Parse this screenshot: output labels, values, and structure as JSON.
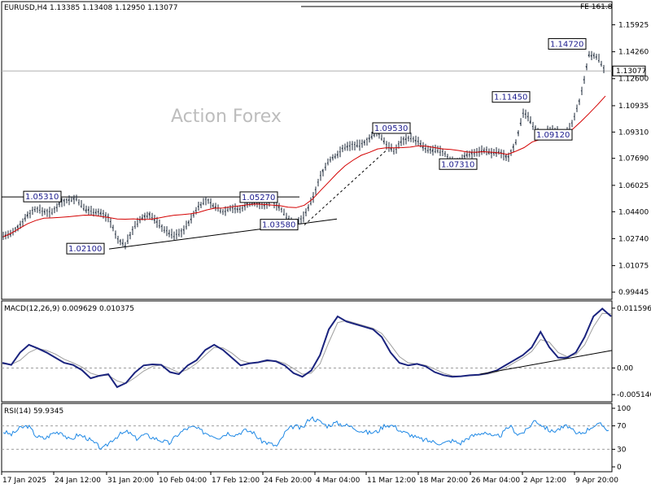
{
  "chart_data": {
    "type": "line",
    "main": {
      "symbol_info": "EURUSD,H4  1.13385 1.13408 1.12950 1.13077",
      "fe_label": "FE 161.8",
      "watermark": "Action Forex",
      "y_ticks": [
        "1.15925",
        "1.14260",
        "1.12600",
        "1.10935",
        "1.09310",
        "1.07690",
        "1.06025",
        "1.04400",
        "1.02740",
        "1.01075",
        "0.99445"
      ],
      "ylim": [
        0.99,
        1.1735
      ],
      "current_price": "1.13077",
      "price_series_x_index": [
        0,
        10,
        20,
        30,
        40,
        50,
        60,
        70,
        80,
        90,
        100,
        110,
        120,
        130,
        140,
        150,
        160,
        170,
        180,
        190,
        200,
        210,
        220,
        230,
        240,
        250,
        260,
        270,
        280,
        290,
        300,
        310,
        320,
        330,
        340,
        350,
        360,
        370,
        380,
        390,
        400,
        410,
        420,
        430,
        440,
        450,
        460,
        470,
        480,
        490,
        500,
        510,
        520,
        530,
        540,
        550,
        560,
        570,
        580,
        590,
        600,
        610,
        620,
        630,
        640,
        650,
        660,
        670,
        680,
        690,
        700,
        710,
        720,
        730,
        740
      ],
      "price_series": [
        1.0292,
        1.0301,
        1.0354,
        1.042,
        1.046,
        1.044,
        1.0435,
        1.0498,
        1.0512,
        1.052,
        1.0455,
        1.0445,
        1.0432,
        1.0401,
        1.027,
        1.0234,
        1.034,
        1.0401,
        1.0423,
        1.037,
        1.032,
        1.0292,
        1.0318,
        1.0386,
        1.0475,
        1.0512,
        1.047,
        1.044,
        1.0466,
        1.045,
        1.0488,
        1.05,
        1.0474,
        1.051,
        1.0462,
        1.04,
        1.0363,
        1.0412,
        1.0515,
        1.066,
        1.0755,
        1.079,
        1.084,
        1.085,
        1.085,
        1.0892,
        1.0929,
        1.0862,
        1.081,
        1.088,
        1.0898,
        1.087,
        1.082,
        1.082,
        1.081,
        1.0755,
        1.0745,
        1.0792,
        1.0805,
        1.082,
        1.0801,
        1.0808,
        1.077,
        1.087,
        1.106,
        1.098,
        1.0915,
        1.094,
        1.094,
        1.09,
        1.099,
        1.1152,
        1.1406,
        1.1397,
        1.1308
      ],
      "ma_series": [
        1.0285,
        1.0308,
        1.0338,
        1.0366,
        1.0386,
        1.04,
        1.0402,
        1.0405,
        1.0409,
        1.0414,
        1.0419,
        1.0418,
        1.0411,
        1.0404,
        1.0395,
        1.0394,
        1.0396,
        1.0392,
        1.0393,
        1.04,
        1.041,
        1.0418,
        1.0422,
        1.0427,
        1.0436,
        1.0451,
        1.0462,
        1.0463,
        1.047,
        1.0476,
        1.0483,
        1.0487,
        1.0485,
        1.0481,
        1.0477,
        1.0468,
        1.0465,
        1.048,
        1.0517,
        1.0571,
        1.0623,
        1.0676,
        1.0723,
        1.0758,
        1.0788,
        1.0806,
        1.0827,
        1.0834,
        1.0834,
        1.0835,
        1.0838,
        1.0846,
        1.0844,
        1.0835,
        1.0827,
        1.0824,
        1.0817,
        1.0808,
        1.0806,
        1.081,
        1.0807,
        1.0802,
        1.0793,
        1.0813,
        1.0835,
        1.087,
        1.0886,
        1.089,
        1.0898,
        1.092,
        1.095,
        1.0996,
        1.1046,
        1.1098,
        1.1153
      ],
      "horizontal_lines": [
        1.0531,
        1.0527
      ],
      "fe_level": 1.1705,
      "trendline": [
        [
          130,
          1.021
        ],
        [
          410,
          1.0395
        ]
      ],
      "dashed_trendline": [
        [
          370,
          1.0358
        ],
        [
          470,
          1.0815
        ]
      ],
      "annotations": [
        {
          "text": "1.05310",
          "x": 29,
          "y": 1.0531
        },
        {
          "text": "1.05270",
          "x": 295,
          "y": 1.0527
        },
        {
          "text": "1.03580",
          "x": 320,
          "y": 1.0358
        },
        {
          "text": "1.02100",
          "x": 82,
          "y": 1.021
        },
        {
          "text": "1.09530",
          "x": 458,
          "y": 1.0953
        },
        {
          "text": "1.07310",
          "x": 540,
          "y": 1.0731
        },
        {
          "text": "1.11450",
          "x": 605,
          "y": 1.1145
        },
        {
          "text": "1.09120",
          "x": 657,
          "y": 1.0912
        },
        {
          "text": "1.14720",
          "x": 674,
          "y": 1.1472
        }
      ]
    },
    "macd": {
      "title": "MACD(12,26,9) 0.009629 0.010375",
      "y_ticks": [
        "0.011596",
        "0.00",
        "-0.005146"
      ],
      "ylim": [
        -0.00655,
        0.013
      ],
      "macd_series": [
        0.001,
        0.0006,
        0.003,
        0.0045,
        0.0038,
        0.003,
        0.002,
        0.001,
        0.0006,
        -0.0004,
        -0.002,
        -0.0015,
        -0.0012,
        -0.0037,
        -0.0029,
        -0.0009,
        0.0005,
        0.0007,
        0.0006,
        -0.0008,
        -0.0012,
        0.0005,
        0.0015,
        0.0035,
        0.0045,
        0.0035,
        0.002,
        0.0005,
        0.0009,
        0.0011,
        0.0015,
        0.0013,
        0.0005,
        -0.001,
        -0.0017,
        -0.0005,
        0.0025,
        0.0075,
        0.01,
        0.009,
        0.0085,
        0.008,
        0.0075,
        0.006,
        0.003,
        0.001,
        0.0005,
        0.0008,
        0.0003,
        -0.0008,
        -0.0014,
        -0.0017,
        -0.0016,
        -0.0014,
        -0.0013,
        -0.001,
        -0.0005,
        0.0005,
        0.0015,
        0.0025,
        0.004,
        0.007,
        0.004,
        0.002,
        0.002,
        0.003,
        0.006,
        0.01,
        0.0115,
        0.01
      ],
      "signal_series": [
        0.0008,
        0.0007,
        0.0015,
        0.003,
        0.0038,
        0.0034,
        0.0027,
        0.0017,
        0.001,
        0.0002,
        -0.001,
        -0.0015,
        -0.0014,
        -0.0025,
        -0.003,
        -0.0019,
        -0.0006,
        0.0003,
        0.0006,
        -0.0001,
        -0.0009,
        -0.0003,
        0.0009,
        0.0025,
        0.004,
        0.0039,
        0.0029,
        0.0015,
        0.001,
        0.0011,
        0.0013,
        0.0014,
        0.0009,
        -0.0001,
        -0.0012,
        -0.001,
        0.0008,
        0.005,
        0.0088,
        0.0092,
        0.0087,
        0.0082,
        0.0077,
        0.0067,
        0.0045,
        0.0022,
        0.001,
        0.0008,
        0.0005,
        -0.0002,
        -0.001,
        -0.0015,
        -0.0016,
        -0.0015,
        -0.0014,
        -0.0012,
        -0.0008,
        0.0,
        0.001,
        0.002,
        0.0032,
        0.0055,
        0.005,
        0.003,
        0.0022,
        0.0026,
        0.0045,
        0.008,
        0.0106,
        0.0105
      ],
      "trendline": [
        [
          590,
          -0.0012
        ],
        [
          752,
          0.0034
        ]
      ]
    },
    "rsi": {
      "title": "RSI(14) 59.9345",
      "y_ticks": [
        "100",
        "70",
        "30",
        "0"
      ],
      "ylim": [
        0,
        100
      ],
      "levels": [
        70,
        30
      ],
      "series": [
        60,
        55,
        66,
        70,
        52,
        48,
        58,
        60,
        45,
        55,
        50,
        40,
        30,
        45,
        55,
        60,
        48,
        55,
        50,
        45,
        40,
        55,
        65,
        68,
        60,
        55,
        50,
        58,
        55,
        62,
        60,
        45,
        40,
        35,
        60,
        70,
        65,
        85,
        78,
        70,
        75,
        72,
        68,
        62,
        58,
        60,
        72,
        70,
        60,
        55,
        48,
        45,
        42,
        40,
        45,
        40,
        50,
        55,
        60,
        50,
        55,
        70,
        55,
        62,
        80,
        70,
        60,
        65,
        70,
        55,
        60,
        70,
        72,
        62
      ]
    },
    "x_ticks": [
      "17 Jan 2025",
      "24 Jan 12:00",
      "31 Jan 20:00",
      "10 Feb 04:00",
      "17 Feb 12:00",
      "24 Feb 20:00",
      "4 Mar 04:00",
      "11 Mar 12:00",
      "18 Mar 20:00",
      "26 Mar 04:00",
      "2 Apr 12:00",
      "9 Apr 20:00"
    ]
  },
  "colors": {
    "price": "#1e2a3a",
    "ma": "#d40000",
    "macd": "#1a237e",
    "signal": "#9e9e9e",
    "rsi": "#1e88e5",
    "label_text": "#1a1a8c"
  }
}
